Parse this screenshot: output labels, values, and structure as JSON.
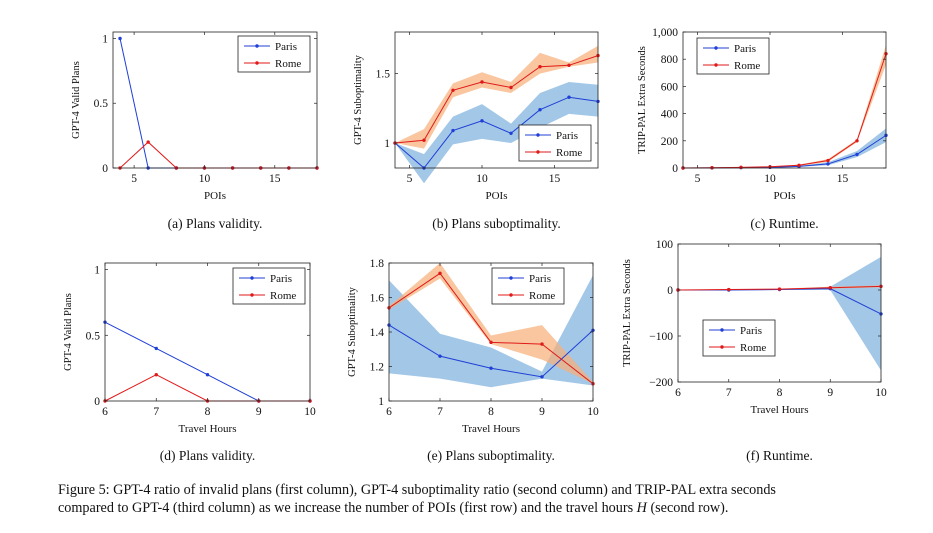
{
  "colors": {
    "paris": "#1f3fd6",
    "rome": "#e01a1a",
    "paris_band": "#7fb1de",
    "rome_band": "#f6b07a"
  },
  "chart_data": [
    {
      "id": "a",
      "type": "line",
      "ylabel": "GPT-4 Valid Plans",
      "xlabel": "POIs",
      "xlim": [
        3.5,
        18
      ],
      "ylim": [
        0,
        1.05
      ],
      "xticks": [
        5,
        10,
        15
      ],
      "yticks": [
        {
          "v": 0,
          "label": "0"
        },
        {
          "v": 0.5,
          "label": "0.5"
        },
        {
          "v": 1,
          "label": "1"
        }
      ],
      "legend_position": "top-right",
      "series": [
        {
          "name": "Paris",
          "x": [
            4,
            6,
            8,
            10,
            12,
            14,
            16,
            18
          ],
          "y": [
            1,
            0,
            0,
            0,
            0,
            0,
            0,
            0
          ]
        },
        {
          "name": "Rome",
          "x": [
            4,
            6,
            8,
            10,
            12,
            14,
            16,
            18
          ],
          "y": [
            0,
            0.2,
            0,
            0,
            0,
            0,
            0,
            0
          ]
        }
      ],
      "subcaption": "(a) Plans validity."
    },
    {
      "id": "b",
      "type": "line",
      "ylabel": "GPT-4 Suboptimality",
      "xlabel": "POIs",
      "xlim": [
        4,
        18
      ],
      "ylim": [
        0.82,
        1.8
      ],
      "xticks": [
        5,
        10,
        15
      ],
      "yticks": [
        {
          "v": 1,
          "label": "1"
        },
        {
          "v": 1.5,
          "label": "1.5"
        }
      ],
      "legend_position": "bottom-right",
      "series": [
        {
          "name": "Paris",
          "x": [
            4,
            6,
            8,
            10,
            12,
            14,
            16,
            18
          ],
          "y": [
            1.0,
            0.82,
            1.09,
            1.16,
            1.07,
            1.24,
            1.33,
            1.3
          ],
          "band_low": [
            1.0,
            0.71,
            0.99,
            1.03,
            1.0,
            1.11,
            1.21,
            1.19
          ],
          "band_high": [
            1.0,
            0.92,
            1.19,
            1.28,
            1.14,
            1.36,
            1.44,
            1.42
          ]
        },
        {
          "name": "Rome",
          "x": [
            4,
            6,
            8,
            10,
            12,
            14,
            16,
            18
          ],
          "y": [
            1.0,
            1.02,
            1.38,
            1.44,
            1.4,
            1.55,
            1.56,
            1.63
          ],
          "band_low": [
            1.0,
            0.96,
            1.33,
            1.4,
            1.36,
            1.5,
            1.55,
            1.58
          ],
          "band_high": [
            1.0,
            1.1,
            1.43,
            1.51,
            1.44,
            1.65,
            1.58,
            1.7
          ]
        }
      ],
      "subcaption": "(b) Plans suboptimality."
    },
    {
      "id": "c",
      "type": "line",
      "ylabel": "TRIP-PAL Extra Seconds",
      "xlabel": "POIs",
      "xlim": [
        4,
        18
      ],
      "ylim": [
        0,
        1000
      ],
      "xticks": [
        5,
        10,
        15
      ],
      "yticks": [
        {
          "v": 0,
          "label": "0"
        },
        {
          "v": 200,
          "label": "200"
        },
        {
          "v": 400,
          "label": "400"
        },
        {
          "v": 600,
          "label": "600"
        },
        {
          "v": 800,
          "label": "800"
        },
        {
          "v": 1000,
          "label": "1,000"
        }
      ],
      "legend_position": "top-left",
      "series": [
        {
          "name": "Paris",
          "x": [
            4,
            6,
            8,
            10,
            12,
            14,
            16,
            18
          ],
          "y": [
            0,
            1,
            3,
            5,
            12,
            30,
            100,
            240
          ],
          "band_low": [
            0,
            0,
            1,
            3,
            8,
            20,
            80,
            190
          ],
          "band_high": [
            0,
            2,
            5,
            8,
            16,
            42,
            125,
            290
          ]
        },
        {
          "name": "Rome",
          "x": [
            4,
            6,
            8,
            10,
            12,
            14,
            16,
            18
          ],
          "y": [
            0,
            2,
            5,
            9,
            20,
            55,
            200,
            840
          ],
          "band_low": [
            0,
            1,
            3,
            6,
            15,
            45,
            190,
            760
          ],
          "band_high": [
            0,
            3,
            7,
            12,
            25,
            65,
            210,
            905
          ]
        }
      ],
      "subcaption": "(c) Runtime."
    },
    {
      "id": "d",
      "type": "line",
      "ylabel": "GPT-4 Valid Plans",
      "xlabel": "Travel Hours",
      "xlim": [
        6,
        10
      ],
      "ylim": [
        0,
        1.05
      ],
      "xticks": [
        6,
        7,
        8,
        9,
        10
      ],
      "yticks": [
        {
          "v": 0,
          "label": "0"
        },
        {
          "v": 0.5,
          "label": "0.5"
        },
        {
          "v": 1,
          "label": "1"
        }
      ],
      "legend_position": "top-right",
      "series": [
        {
          "name": "Paris",
          "x": [
            6,
            7,
            8,
            9,
            10
          ],
          "y": [
            0.6,
            0.4,
            0.2,
            0,
            0
          ]
        },
        {
          "name": "Rome",
          "x": [
            6,
            7,
            8,
            9,
            10
          ],
          "y": [
            0,
            0.2,
            0,
            0,
            0
          ]
        }
      ],
      "subcaption": "(d) Plans validity."
    },
    {
      "id": "e",
      "type": "line",
      "ylabel": "GPT-4 Suboptimality",
      "xlabel": "Travel Hours",
      "xlim": [
        6,
        10
      ],
      "ylim": [
        1,
        1.8
      ],
      "xticks": [
        6,
        7,
        8,
        9,
        10
      ],
      "yticks": [
        {
          "v": 1,
          "label": "1"
        },
        {
          "v": 1.2,
          "label": "1.2"
        },
        {
          "v": 1.4,
          "label": "1.4"
        },
        {
          "v": 1.6,
          "label": "1.6"
        },
        {
          "v": 1.8,
          "label": "1.8"
        }
      ],
      "legend_position": "top-right",
      "series": [
        {
          "name": "Paris",
          "x": [
            6,
            7,
            8,
            9,
            10
          ],
          "y": [
            1.44,
            1.26,
            1.19,
            1.14,
            1.41
          ],
          "band_low": [
            1.16,
            1.13,
            1.08,
            1.13,
            1.09
          ],
          "band_high": [
            1.7,
            1.39,
            1.31,
            1.17,
            1.73
          ]
        },
        {
          "name": "Rome",
          "x": [
            6,
            7,
            8,
            9,
            10
          ],
          "y": [
            1.54,
            1.74,
            1.34,
            1.33,
            1.1
          ],
          "band_low": [
            1.53,
            1.71,
            1.33,
            1.24,
            1.1
          ],
          "band_high": [
            1.55,
            1.8,
            1.38,
            1.44,
            1.11
          ]
        }
      ],
      "subcaption": "(e) Plans suboptimality."
    },
    {
      "id": "f",
      "type": "line",
      "ylabel": "TRIP-PAL Extra Seconds",
      "xlabel": "Travel Hours",
      "xlim": [
        6,
        10
      ],
      "ylim": [
        -200,
        100
      ],
      "xticks": [
        6,
        7,
        8,
        9,
        10
      ],
      "yticks": [
        {
          "v": -200,
          "label": "−200"
        },
        {
          "v": -100,
          "label": "−100"
        },
        {
          "v": 0,
          "label": "0"
        },
        {
          "v": 100,
          "label": "100"
        }
      ],
      "legend_position": "bottom-left",
      "series": [
        {
          "name": "Paris",
          "x": [
            6,
            7,
            8,
            9,
            10
          ],
          "y": [
            0,
            0,
            1,
            3,
            -52
          ],
          "band_low": [
            0,
            0,
            0,
            0,
            -175
          ],
          "band_high": [
            0,
            1,
            2,
            7,
            72
          ]
        },
        {
          "name": "Rome",
          "x": [
            6,
            7,
            8,
            9,
            10
          ],
          "y": [
            0,
            1,
            2,
            5,
            8
          ],
          "band_low": [
            0,
            0,
            1,
            3,
            6
          ],
          "band_high": [
            0,
            2,
            3,
            7,
            10
          ]
        }
      ],
      "subcaption": "(f) Runtime."
    }
  ],
  "figure_caption": {
    "line1": "Figure 5: GPT-4 ratio of invalid plans (first column), GPT-4 suboptimality ratio (second column) and TRIP-PAL extra seconds",
    "line2_pre": "compared to GPT-4 (third column) as we increase the number of POIs (first row) and the travel hours ",
    "line2_var": "H",
    "line2_post": " (second row)."
  }
}
